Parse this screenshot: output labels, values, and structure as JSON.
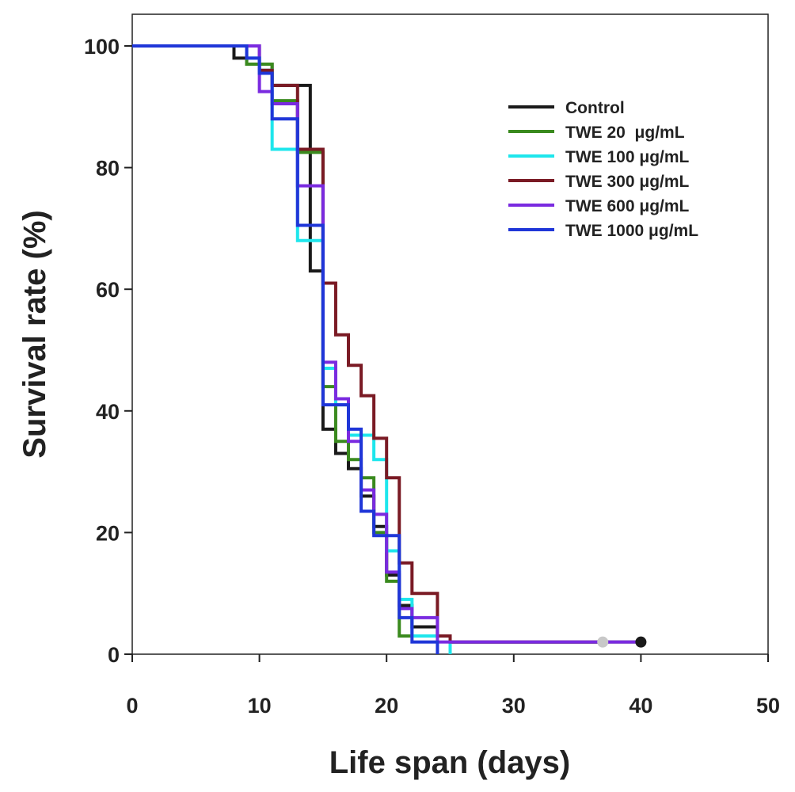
{
  "chart_data": {
    "type": "line",
    "subtype": "kaplan-meier-step",
    "title": "",
    "xlabel": "Life span (days)",
    "ylabel": "Survival rate (%)",
    "xlim": [
      0,
      50
    ],
    "ylim": [
      0,
      100
    ],
    "x_ticks": [
      0,
      10,
      20,
      30,
      40,
      50
    ],
    "x_tick_labels": [
      "0",
      "10",
      "20",
      "30",
      "40",
      "50"
    ],
    "y_ticks": [
      0,
      20,
      40,
      60,
      80,
      100
    ],
    "y_tick_labels": [
      "0",
      "20",
      "40",
      "60",
      "80",
      "100"
    ],
    "grid": false,
    "legend_position": "top-right",
    "series": [
      {
        "name": "Control",
        "color": "#1a1a1a",
        "points": [
          [
            0,
            100
          ],
          [
            8,
            100
          ],
          [
            8,
            98
          ],
          [
            9,
            98
          ],
          [
            9,
            97
          ],
          [
            11,
            97
          ],
          [
            11,
            93.5
          ],
          [
            14,
            93.5
          ],
          [
            14,
            63
          ],
          [
            15,
            63
          ],
          [
            15,
            37
          ],
          [
            16,
            37
          ],
          [
            16,
            33
          ],
          [
            17,
            33
          ],
          [
            17,
            30.5
          ],
          [
            18,
            30.5
          ],
          [
            18,
            26
          ],
          [
            19,
            26
          ],
          [
            19,
            21
          ],
          [
            20,
            21
          ],
          [
            20,
            13
          ],
          [
            21,
            13
          ],
          [
            21,
            8
          ],
          [
            22,
            8
          ],
          [
            22,
            4.5
          ],
          [
            24,
            4.5
          ],
          [
            24,
            3
          ],
          [
            25,
            3
          ],
          [
            25,
            2
          ],
          [
            40,
            2
          ]
        ],
        "end_marker": [
          40,
          2
        ]
      },
      {
        "name": "TWE 20  μg/mL",
        "color": "#3a8a1e",
        "points": [
          [
            0,
            100
          ],
          [
            9,
            100
          ],
          [
            9,
            97
          ],
          [
            11,
            97
          ],
          [
            11,
            91
          ],
          [
            13,
            91
          ],
          [
            13,
            82.5
          ],
          [
            15,
            82.5
          ],
          [
            15,
            44
          ],
          [
            16,
            44
          ],
          [
            16,
            35
          ],
          [
            17,
            35
          ],
          [
            17,
            32
          ],
          [
            18,
            32
          ],
          [
            18,
            29
          ],
          [
            19,
            29
          ],
          [
            19,
            20
          ],
          [
            20,
            20
          ],
          [
            20,
            12
          ],
          [
            21,
            12
          ],
          [
            21,
            3
          ],
          [
            25,
            3
          ],
          [
            25,
            2
          ],
          [
            37,
            2
          ]
        ]
      },
      {
        "name": "TWE 100 μg/mL",
        "color": "#1ee6ec",
        "points": [
          [
            0,
            100
          ],
          [
            9,
            100
          ],
          [
            9,
            98
          ],
          [
            10,
            98
          ],
          [
            10,
            96
          ],
          [
            11,
            96
          ],
          [
            11,
            83
          ],
          [
            13,
            83
          ],
          [
            13,
            68
          ],
          [
            15,
            68
          ],
          [
            15,
            47
          ],
          [
            16,
            47
          ],
          [
            16,
            41
          ],
          [
            17,
            41
          ],
          [
            17,
            36
          ],
          [
            19,
            36
          ],
          [
            19,
            32
          ],
          [
            20,
            32
          ],
          [
            20,
            17
          ],
          [
            21,
            17
          ],
          [
            21,
            9
          ],
          [
            22,
            9
          ],
          [
            22,
            3
          ],
          [
            25,
            3
          ],
          [
            25,
            0
          ]
        ],
        "end_marker": [
          37,
          2
        ],
        "end_marker_color": "#c8c8c8"
      },
      {
        "name": "TWE 300 μg/mL",
        "color": "#7a1a24",
        "points": [
          [
            0,
            100
          ],
          [
            10,
            100
          ],
          [
            10,
            96
          ],
          [
            11,
            96
          ],
          [
            11,
            93.5
          ],
          [
            13,
            93.5
          ],
          [
            13,
            83
          ],
          [
            15,
            83
          ],
          [
            15,
            61
          ],
          [
            16,
            61
          ],
          [
            16,
            52.5
          ],
          [
            17,
            52.5
          ],
          [
            17,
            47.5
          ],
          [
            18,
            47.5
          ],
          [
            18,
            42.5
          ],
          [
            19,
            42.5
          ],
          [
            19,
            35.5
          ],
          [
            20,
            35.5
          ],
          [
            20,
            29
          ],
          [
            21,
            29
          ],
          [
            21,
            15
          ],
          [
            22,
            15
          ],
          [
            22,
            10
          ],
          [
            24,
            10
          ],
          [
            24,
            3
          ],
          [
            25,
            3
          ],
          [
            25,
            2
          ],
          [
            37,
            2
          ]
        ]
      },
      {
        "name": "TWE 600 μg/mL",
        "color": "#7a2ae0",
        "points": [
          [
            0,
            100
          ],
          [
            10,
            100
          ],
          [
            10,
            92.5
          ],
          [
            11,
            92.5
          ],
          [
            11,
            90.5
          ],
          [
            13,
            90.5
          ],
          [
            13,
            77
          ],
          [
            15,
            77
          ],
          [
            15,
            48
          ],
          [
            16,
            48
          ],
          [
            16,
            42
          ],
          [
            17,
            42
          ],
          [
            17,
            35
          ],
          [
            18,
            35
          ],
          [
            18,
            27
          ],
          [
            19,
            27
          ],
          [
            19,
            23
          ],
          [
            20,
            23
          ],
          [
            20,
            13.5
          ],
          [
            21,
            13.5
          ],
          [
            21,
            7.5
          ],
          [
            22,
            7.5
          ],
          [
            22,
            6
          ],
          [
            24,
            6
          ],
          [
            24,
            2
          ],
          [
            40,
            2
          ]
        ]
      },
      {
        "name": "TWE 1000 μg/mL",
        "color": "#1f36d8",
        "points": [
          [
            0,
            100
          ],
          [
            9,
            100
          ],
          [
            9,
            98
          ],
          [
            10,
            98
          ],
          [
            10,
            95.5
          ],
          [
            11,
            95.5
          ],
          [
            11,
            88
          ],
          [
            13,
            88
          ],
          [
            13,
            70.5
          ],
          [
            15,
            70.5
          ],
          [
            15,
            41
          ],
          [
            17,
            41
          ],
          [
            17,
            37
          ],
          [
            18,
            37
          ],
          [
            18,
            23.5
          ],
          [
            19,
            23.5
          ],
          [
            19,
            19.5
          ],
          [
            21,
            19.5
          ],
          [
            21,
            6
          ],
          [
            22,
            6
          ],
          [
            22,
            2
          ],
          [
            24,
            2
          ],
          [
            24,
            0
          ]
        ]
      }
    ]
  }
}
